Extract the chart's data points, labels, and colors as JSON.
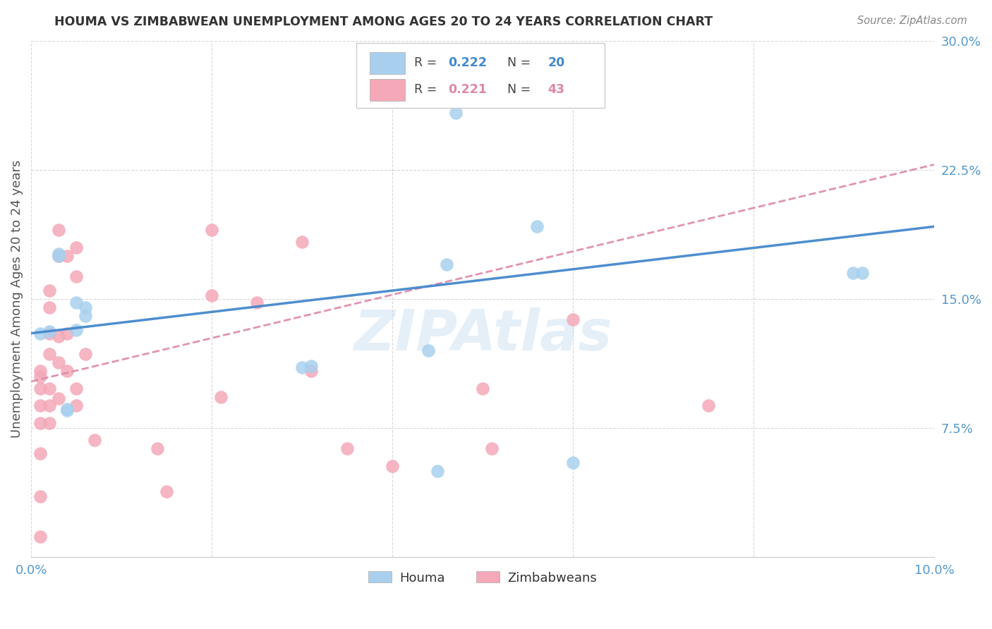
{
  "title": "HOUMA VS ZIMBABWEAN UNEMPLOYMENT AMONG AGES 20 TO 24 YEARS CORRELATION CHART",
  "source": "Source: ZipAtlas.com",
  "ylabel": "Unemployment Among Ages 20 to 24 years",
  "xlim": [
    0.0,
    0.1
  ],
  "ylim": [
    0.0,
    0.3
  ],
  "xticks": [
    0.0,
    0.02,
    0.04,
    0.06,
    0.08,
    0.1
  ],
  "yticks": [
    0.0,
    0.075,
    0.15,
    0.225,
    0.3
  ],
  "xtick_labels": [
    "0.0%",
    "",
    "",
    "",
    "",
    "10.0%"
  ],
  "ytick_labels": [
    "",
    "7.5%",
    "15.0%",
    "22.5%",
    "30.0%"
  ],
  "houma_R": "0.222",
  "houma_N": "20",
  "zimb_R": "0.221",
  "zimb_N": "43",
  "houma_scatter_color": "#a8d0ee",
  "zimb_scatter_color": "#f4a8b8",
  "houma_line_color": "#4488cc",
  "zimb_line_color": "#dd88aa",
  "houma_x": [
    0.001,
    0.002,
    0.003,
    0.003,
    0.004,
    0.004,
    0.005,
    0.005,
    0.006,
    0.006,
    0.03,
    0.031,
    0.044,
    0.045,
    0.046,
    0.047,
    0.056,
    0.06,
    0.091,
    0.092
  ],
  "houma_y": [
    0.13,
    0.131,
    0.175,
    0.176,
    0.085,
    0.086,
    0.132,
    0.148,
    0.145,
    0.14,
    0.11,
    0.111,
    0.12,
    0.05,
    0.17,
    0.258,
    0.192,
    0.055,
    0.165,
    0.165
  ],
  "zimb_x": [
    0.001,
    0.001,
    0.001,
    0.001,
    0.001,
    0.001,
    0.001,
    0.001,
    0.002,
    0.002,
    0.002,
    0.002,
    0.002,
    0.002,
    0.002,
    0.003,
    0.003,
    0.003,
    0.003,
    0.003,
    0.004,
    0.004,
    0.004,
    0.005,
    0.005,
    0.005,
    0.005,
    0.006,
    0.007,
    0.014,
    0.015,
    0.02,
    0.02,
    0.021,
    0.025,
    0.03,
    0.031,
    0.035,
    0.04,
    0.05,
    0.051,
    0.06,
    0.075
  ],
  "zimb_y": [
    0.108,
    0.105,
    0.098,
    0.088,
    0.078,
    0.06,
    0.035,
    0.012,
    0.155,
    0.145,
    0.13,
    0.118,
    0.098,
    0.088,
    0.078,
    0.19,
    0.175,
    0.128,
    0.113,
    0.092,
    0.175,
    0.13,
    0.108,
    0.18,
    0.163,
    0.098,
    0.088,
    0.118,
    0.068,
    0.063,
    0.038,
    0.19,
    0.152,
    0.093,
    0.148,
    0.183,
    0.108,
    0.063,
    0.053,
    0.098,
    0.063,
    0.138,
    0.088
  ],
  "houma_trend_x": [
    0.0,
    0.1
  ],
  "houma_trend_y": [
    0.13,
    0.192
  ],
  "zimb_trend_x": [
    0.0,
    0.1
  ],
  "zimb_trend_y": [
    0.102,
    0.228
  ],
  "background_color": "#ffffff",
  "grid_color": "#d0d0d0",
  "tick_color": "#5599cc",
  "ylabel_color": "#555555",
  "title_color": "#333333",
  "source_color": "#888888",
  "legend_border_color": "#cccccc",
  "watermark_color": "#cce0f0",
  "watermark_alpha": 0.5
}
